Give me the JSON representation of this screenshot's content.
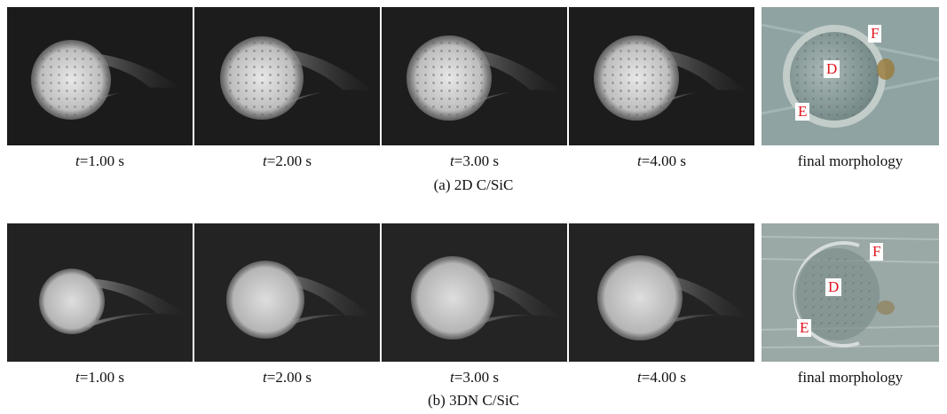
{
  "panels": [
    {
      "id": "a",
      "frames": [
        {
          "t_var": "t",
          "t_value": "=1.00 s"
        },
        {
          "t_var": "t",
          "t_value": "=2.00 s"
        },
        {
          "t_var": "t",
          "t_value": "=3.00 s"
        },
        {
          "t_var": "t",
          "t_value": "=4.00 s"
        }
      ],
      "final_label": "final morphology",
      "markers": [
        "F",
        "D",
        "E"
      ],
      "caption": "(a) 2D C/SiC"
    },
    {
      "id": "b",
      "frames": [
        {
          "t_var": "t",
          "t_value": "=1.00 s"
        },
        {
          "t_var": "t",
          "t_value": "=2.00 s"
        },
        {
          "t_var": "t",
          "t_value": "=3.00 s"
        },
        {
          "t_var": "t",
          "t_value": "=4.00 s"
        }
      ],
      "final_label": "final morphology",
      "markers": [
        "F",
        "D",
        "E"
      ],
      "caption": "(b) 3DN C/SiC"
    }
  ],
  "colors": {
    "frame_bg": "#1a1a1a",
    "disc": "#cfcfcf",
    "marker_text": "#e0141e",
    "specimen_bg": "#8fa3a3"
  }
}
